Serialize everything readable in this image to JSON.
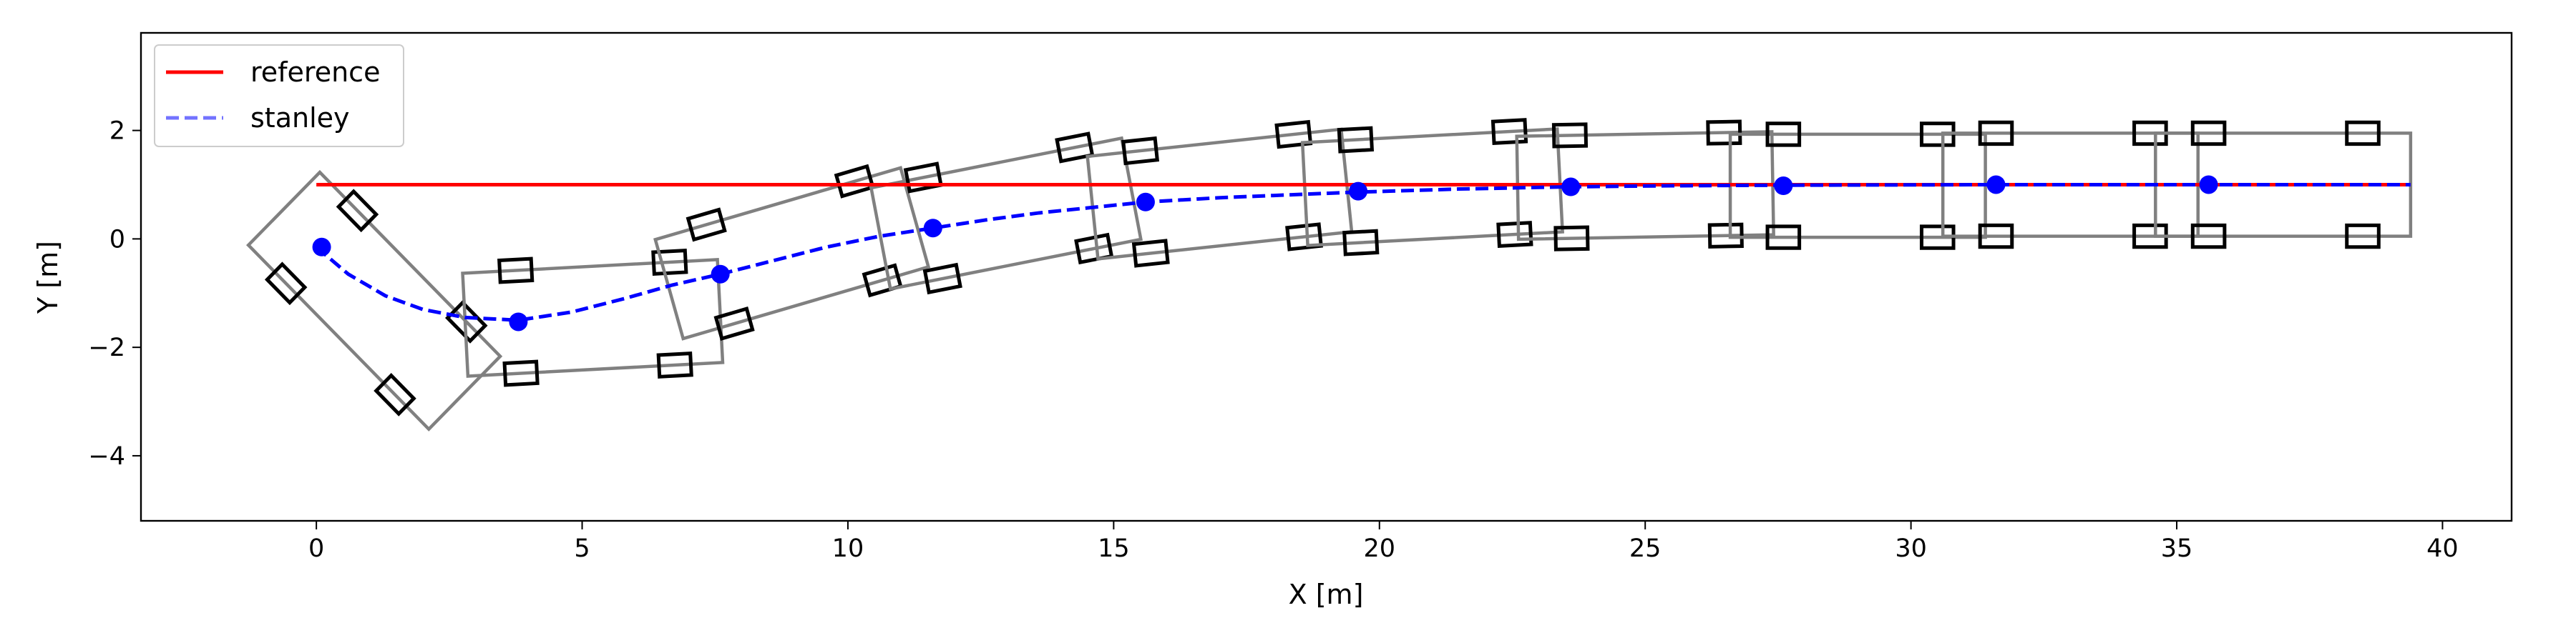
{
  "chart_data": {
    "type": "line",
    "xlabel": "X [m]",
    "ylabel": "Y [m]",
    "xlim": [
      -3.3,
      41.3
    ],
    "ylim": [
      -5.2,
      3.8
    ],
    "xticks": [
      0,
      5,
      10,
      15,
      20,
      25,
      30,
      35,
      40
    ],
    "yticks": [
      -4,
      -2,
      0,
      2
    ],
    "legend_position": "top-left",
    "colors": {
      "reference": "#ff0000",
      "stanley": "#0000ff",
      "vehicle_body": "#808080",
      "wheel": "#000000"
    },
    "series": [
      {
        "name": "reference",
        "style": "solid",
        "x": [
          0,
          39.4
        ],
        "y": [
          1.0,
          1.0
        ]
      },
      {
        "name": "stanley",
        "style": "dashed",
        "x": [
          0.0,
          0.6,
          1.3,
          2.0,
          2.8,
          3.8,
          4.8,
          5.8,
          6.7,
          7.6,
          8.6,
          9.6,
          10.6,
          11.6,
          12.6,
          13.6,
          14.6,
          15.6,
          17.0,
          18.5,
          19.5,
          21.5,
          23.5,
          25.5,
          27.5,
          31.5,
          35.5,
          39.4
        ],
        "y": [
          -0.15,
          -0.65,
          -1.05,
          -1.3,
          -1.45,
          -1.5,
          -1.35,
          -1.1,
          -0.85,
          -0.65,
          -0.4,
          -0.15,
          0.05,
          0.2,
          0.35,
          0.48,
          0.58,
          0.68,
          0.76,
          0.82,
          0.86,
          0.92,
          0.96,
          0.98,
          0.99,
          1.0,
          1.0,
          1.0
        ]
      }
    ],
    "markers": {
      "x": [
        0.1,
        3.8,
        7.6,
        11.6,
        15.6,
        19.6,
        23.6,
        27.6,
        31.6,
        35.6
      ],
      "y": [
        -0.15,
        -1.53,
        -0.65,
        0.2,
        0.68,
        0.88,
        0.96,
        0.98,
        1.0,
        1.0
      ]
    },
    "vehicle_poses": [
      {
        "x": 0.1,
        "y": -0.15,
        "yaw_deg": -45
      },
      {
        "x": 3.8,
        "y": -1.53,
        "yaw_deg": 3
      },
      {
        "x": 7.6,
        "y": -0.65,
        "yaw_deg": 16
      },
      {
        "x": 11.6,
        "y": 0.2,
        "yaw_deg": 11
      },
      {
        "x": 15.6,
        "y": 0.68,
        "yaw_deg": 6
      },
      {
        "x": 19.6,
        "y": 0.88,
        "yaw_deg": 3
      },
      {
        "x": 23.6,
        "y": 0.96,
        "yaw_deg": 1
      },
      {
        "x": 27.6,
        "y": 0.98,
        "yaw_deg": 0
      },
      {
        "x": 31.6,
        "y": 1.0,
        "yaw_deg": 0
      },
      {
        "x": 35.6,
        "y": 1.0,
        "yaw_deg": 0
      }
    ],
    "vehicle_shape": {
      "front_overhang_m": 3.8,
      "rear_overhang_m": 1.0,
      "half_width_m": 0.95,
      "wheelbase_m": 2.9,
      "wheel_half_length_m": 0.3,
      "wheel_half_width_m": 0.2
    }
  }
}
